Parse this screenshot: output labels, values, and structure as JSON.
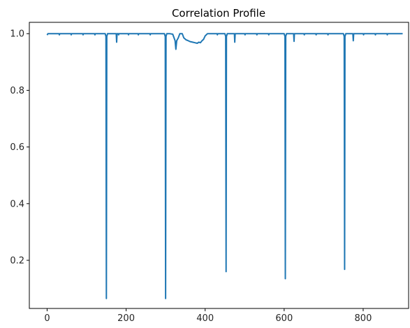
{
  "chart_data": {
    "type": "line",
    "title": "Correlation Profile",
    "xlabel": "",
    "ylabel": "",
    "xlim": [
      -45,
      915
    ],
    "ylim": [
      0.03,
      1.04
    ],
    "xticks": [
      0,
      200,
      400,
      600,
      800
    ],
    "yticks": [
      0.2,
      0.4,
      0.6,
      0.8,
      1.0
    ],
    "xtick_labels": [
      "0",
      "200",
      "400",
      "600",
      "800"
    ],
    "ytick_labels": [
      "0.2",
      "0.4",
      "0.6",
      "0.8",
      "1.0"
    ],
    "grid": false,
    "line_color": "#1f77b4",
    "series": [
      {
        "x": [
          0,
          2,
          30,
          31,
          32,
          60,
          61,
          62,
          90,
          91,
          92,
          120,
          121,
          122,
          147,
          149,
          150,
          151,
          153,
          175,
          176,
          177,
          180,
          181,
          182,
          205,
          206,
          207,
          230,
          231,
          232,
          260,
          261,
          262,
          297,
          299,
          300,
          301,
          303,
          310,
          318,
          324,
          326,
          328,
          332,
          336,
          342,
          346,
          352,
          356,
          362,
          368,
          374,
          380,
          384,
          388,
          392,
          396,
          400,
          406,
          420,
          430,
          431,
          432,
          450,
          452,
          453,
          454,
          456,
          470,
          474,
          475,
          476,
          478,
          500,
          501,
          502,
          530,
          531,
          532,
          560,
          561,
          562,
          600,
          602,
          603,
          604,
          606,
          620,
          624,
          625,
          626,
          628,
          650,
          651,
          652,
          680,
          681,
          682,
          710,
          711,
          712,
          750,
          752,
          753,
          754,
          756,
          770,
          774,
          775,
          776,
          778,
          800,
          801,
          802,
          830,
          831,
          832,
          860,
          861,
          862,
          900
        ],
        "y": [
          0.995,
          1.0,
          1.0,
          0.996,
          1.0,
          1.0,
          0.996,
          1.0,
          1.0,
          0.996,
          1.0,
          1.0,
          0.996,
          1.0,
          1.0,
          0.99,
          0.065,
          0.99,
          1.0,
          1.0,
          0.97,
          1.0,
          1.0,
          0.996,
          1.0,
          1.0,
          0.996,
          1.0,
          1.0,
          0.996,
          1.0,
          1.0,
          0.996,
          1.0,
          1.0,
          0.99,
          0.065,
          0.99,
          1.0,
          1.0,
          0.998,
          0.975,
          0.945,
          0.975,
          0.985,
          1.0,
          1.0,
          0.985,
          0.978,
          0.976,
          0.972,
          0.97,
          0.968,
          0.966,
          0.97,
          0.968,
          0.975,
          0.98,
          0.992,
          1.0,
          1.0,
          1.0,
          0.996,
          1.0,
          1.0,
          0.99,
          0.16,
          0.99,
          1.0,
          1.0,
          1.0,
          0.97,
          1.0,
          1.0,
          1.0,
          0.996,
          1.0,
          1.0,
          0.996,
          1.0,
          1.0,
          0.996,
          1.0,
          1.0,
          0.99,
          0.135,
          0.99,
          1.0,
          1.0,
          1.0,
          0.973,
          1.0,
          1.0,
          1.0,
          0.996,
          1.0,
          1.0,
          0.996,
          1.0,
          1.0,
          0.996,
          1.0,
          1.0,
          0.99,
          0.168,
          0.99,
          1.0,
          1.0,
          1.0,
          0.975,
          1.0,
          1.0,
          1.0,
          0.996,
          1.0,
          1.0,
          0.996,
          1.0,
          1.0,
          0.996,
          1.0,
          1.0
        ]
      }
    ]
  }
}
